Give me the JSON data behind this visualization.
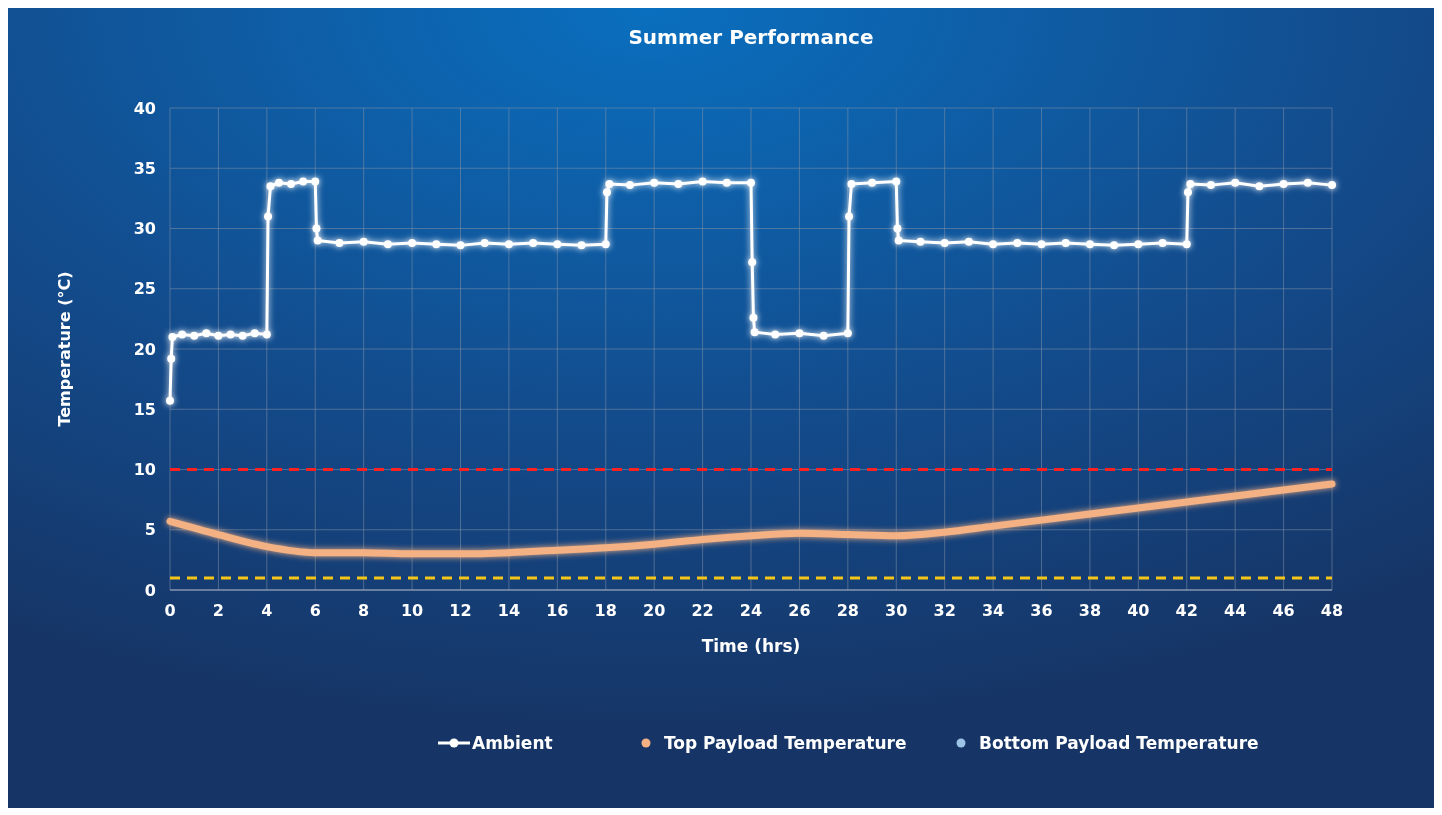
{
  "chart_data": {
    "type": "line",
    "title": "Summer Performance",
    "xlabel": "Time (hrs)",
    "ylabel": "Temperature (°C)",
    "xlim": [
      0,
      48
    ],
    "ylim": [
      0,
      40
    ],
    "xticks": [
      0,
      2,
      4,
      6,
      8,
      10,
      12,
      14,
      16,
      18,
      20,
      22,
      24,
      26,
      28,
      30,
      32,
      34,
      36,
      38,
      40,
      42,
      44,
      46,
      48
    ],
    "yticks": [
      0,
      5,
      10,
      15,
      20,
      25,
      30,
      35,
      40
    ],
    "grid": true,
    "legend": "bottom",
    "ref_lines": [
      {
        "axis": "y",
        "value": 10,
        "color": "#ff2020",
        "line_style": "dashed"
      },
      {
        "axis": "y",
        "value": 1,
        "color": "#f5c518",
        "line_style": "dashed"
      }
    ],
    "series": [
      {
        "name": "Ambient",
        "color": "#ffffff",
        "marker": "circle",
        "x": [
          0,
          0.05,
          0.1,
          0.5,
          1,
          1.5,
          2,
          2.5,
          3,
          3.5,
          4,
          4.05,
          4.15,
          4.5,
          5,
          5.5,
          6,
          6.05,
          6.1,
          7,
          8,
          9,
          10,
          11,
          12,
          13,
          14,
          15,
          16,
          17,
          18,
          18.05,
          18.15,
          19,
          20,
          21,
          22,
          23,
          24,
          24.05,
          24.1,
          24.15,
          25,
          26,
          27,
          28,
          28.05,
          28.15,
          29,
          30,
          30.05,
          30.1,
          31,
          32,
          33,
          34,
          35,
          36,
          37,
          38,
          39,
          40,
          41,
          42,
          42.05,
          42.15,
          43,
          44,
          45,
          46,
          47,
          48
        ],
        "values": [
          15.7,
          19.2,
          21,
          21.2,
          21.1,
          21.3,
          21.1,
          21.2,
          21.1,
          21.3,
          21.2,
          31,
          33.5,
          33.8,
          33.7,
          33.9,
          33.9,
          30,
          29,
          28.8,
          28.9,
          28.7,
          28.8,
          28.7,
          28.6,
          28.8,
          28.7,
          28.8,
          28.7,
          28.6,
          28.7,
          33,
          33.7,
          33.6,
          33.8,
          33.7,
          33.9,
          33.8,
          33.8,
          27.2,
          22.6,
          21.4,
          21.2,
          21.3,
          21.1,
          21.3,
          31,
          33.7,
          33.8,
          33.9,
          30,
          29,
          28.9,
          28.8,
          28.9,
          28.7,
          28.8,
          28.7,
          28.8,
          28.7,
          28.6,
          28.7,
          28.8,
          28.7,
          33,
          33.7,
          33.6,
          33.8,
          33.5,
          33.7,
          33.8,
          33.6
        ]
      },
      {
        "name": "Top Payload Temperature",
        "color": "#f4b183",
        "marker": "none",
        "x": [
          0,
          2,
          4,
          6,
          8,
          10,
          12,
          14,
          16,
          18,
          20,
          22,
          24,
          26,
          28,
          30,
          32,
          34,
          36,
          38,
          40,
          42,
          44,
          46,
          48
        ],
        "values": [
          5.7,
          4.6,
          3.6,
          3.1,
          3.1,
          3.0,
          3.0,
          3.1,
          3.3,
          3.5,
          3.8,
          4.2,
          4.5,
          4.7,
          4.6,
          4.5,
          4.8,
          5.3,
          5.8,
          6.3,
          6.8,
          7.3,
          7.8,
          8.3,
          8.8
        ]
      },
      {
        "name": "Bottom Payload Temperature",
        "color": "#9dc3e6",
        "marker": "none"
      }
    ]
  }
}
